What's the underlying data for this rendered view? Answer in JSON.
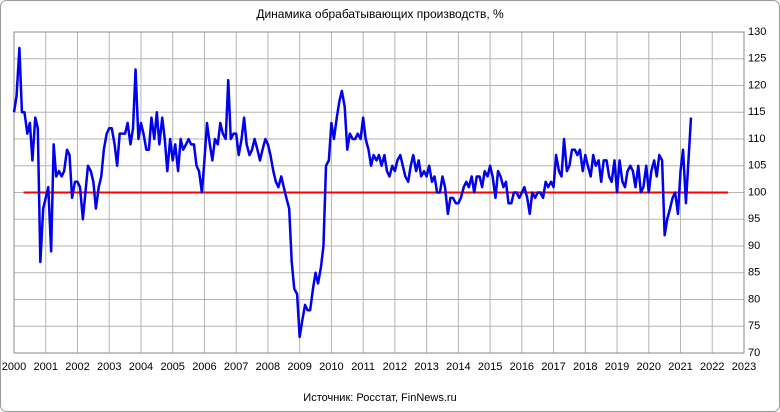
{
  "chart_data": {
    "type": "line",
    "title": "Динамика обрабатывающих производств, %",
    "source": "Источник: Росстат, FinNews.ru",
    "xlim": [
      2000,
      2023
    ],
    "xticks": [
      2000,
      2001,
      2002,
      2003,
      2004,
      2005,
      2006,
      2007,
      2008,
      2009,
      2010,
      2011,
      2012,
      2013,
      2014,
      2015,
      2016,
      2017,
      2018,
      2019,
      2020,
      2021,
      2022,
      2023
    ],
    "ylim": [
      70,
      130
    ],
    "yticks": [
      70,
      75,
      80,
      85,
      90,
      95,
      100,
      105,
      110,
      115,
      120,
      125,
      130
    ],
    "grid": true,
    "reference_line": {
      "value": 100,
      "xlim": [
        2000.3,
        2022.5
      ],
      "color": "#ff0000"
    },
    "x": [
      2000,
      2000.08,
      2000.17,
      2000.25,
      2000.33,
      2000.42,
      2000.5,
      2000.58,
      2000.67,
      2000.75,
      2000.83,
      2000.92,
      2001,
      2001.08,
      2001.17,
      2001.25,
      2001.33,
      2001.42,
      2001.5,
      2001.58,
      2001.67,
      2001.75,
      2001.83,
      2001.92,
      2002,
      2002.08,
      2002.17,
      2002.25,
      2002.33,
      2002.42,
      2002.5,
      2002.58,
      2002.67,
      2002.75,
      2002.83,
      2002.92,
      2003,
      2003.08,
      2003.17,
      2003.25,
      2003.33,
      2003.42,
      2003.5,
      2003.58,
      2003.67,
      2003.75,
      2003.83,
      2003.92,
      2004,
      2004.08,
      2004.17,
      2004.25,
      2004.33,
      2004.42,
      2004.5,
      2004.58,
      2004.67,
      2004.75,
      2004.83,
      2004.92,
      2005,
      2005.08,
      2005.17,
      2005.25,
      2005.33,
      2005.42,
      2005.5,
      2005.58,
      2005.67,
      2005.75,
      2005.83,
      2005.92,
      2006,
      2006.08,
      2006.17,
      2006.25,
      2006.33,
      2006.42,
      2006.5,
      2006.58,
      2006.67,
      2006.75,
      2006.83,
      2006.92,
      2007,
      2007.08,
      2007.17,
      2007.25,
      2007.33,
      2007.42,
      2007.5,
      2007.58,
      2007.67,
      2007.75,
      2007.83,
      2007.92,
      2008,
      2008.08,
      2008.17,
      2008.25,
      2008.33,
      2008.42,
      2008.5,
      2008.58,
      2008.67,
      2008.75,
      2008.83,
      2008.92,
      2009,
      2009.08,
      2009.17,
      2009.25,
      2009.33,
      2009.42,
      2009.5,
      2009.58,
      2009.67,
      2009.75,
      2009.83,
      2009.92,
      2010,
      2010.08,
      2010.17,
      2010.25,
      2010.33,
      2010.42,
      2010.5,
      2010.58,
      2010.67,
      2010.75,
      2010.83,
      2010.92,
      2011,
      2011.08,
      2011.17,
      2011.25,
      2011.33,
      2011.42,
      2011.5,
      2011.58,
      2011.67,
      2011.75,
      2011.83,
      2011.92,
      2012,
      2012.08,
      2012.17,
      2012.25,
      2012.33,
      2012.42,
      2012.5,
      2012.58,
      2012.67,
      2012.75,
      2012.83,
      2012.92,
      2013,
      2013.08,
      2013.17,
      2013.25,
      2013.33,
      2013.42,
      2013.5,
      2013.58,
      2013.67,
      2013.75,
      2013.83,
      2013.92,
      2014,
      2014.08,
      2014.17,
      2014.25,
      2014.33,
      2014.42,
      2014.5,
      2014.58,
      2014.67,
      2014.75,
      2014.83,
      2014.92,
      2015,
      2015.08,
      2015.17,
      2015.25,
      2015.33,
      2015.42,
      2015.5,
      2015.58,
      2015.67,
      2015.75,
      2015.83,
      2015.92,
      2016,
      2016.08,
      2016.17,
      2016.25,
      2016.33,
      2016.42,
      2016.5,
      2016.58,
      2016.67,
      2016.75,
      2016.83,
      2016.92,
      2017,
      2017.08,
      2017.17,
      2017.25,
      2017.33,
      2017.42,
      2017.5,
      2017.58,
      2017.67,
      2017.75,
      2017.83,
      2017.92,
      2018,
      2018.08,
      2018.17,
      2018.25,
      2018.33,
      2018.42,
      2018.5,
      2018.58,
      2018.67,
      2018.75,
      2018.83,
      2018.92,
      2019,
      2019.08,
      2019.17,
      2019.25,
      2019.33,
      2019.42,
      2019.5,
      2019.58,
      2019.67,
      2019.75,
      2019.83,
      2019.92,
      2020,
      2020.08,
      2020.17,
      2020.25,
      2020.33,
      2020.42,
      2020.5,
      2020.58,
      2020.67,
      2020.75,
      2020.83,
      2020.92,
      2021,
      2021.08,
      2021.17,
      2021.25,
      2021.33
    ],
    "color": "#0000ee",
    "values": [
      115,
      118,
      127,
      115,
      115,
      111,
      113,
      106,
      114,
      112,
      87,
      97,
      99,
      101,
      89,
      109,
      103,
      104,
      103,
      104,
      108,
      107,
      99,
      102,
      102,
      101,
      95,
      100,
      105,
      104,
      102,
      97,
      101,
      103,
      108,
      111,
      112,
      112,
      109,
      105,
      111,
      111,
      111,
      113,
      109,
      112,
      123,
      110,
      113,
      111,
      108,
      108,
      114,
      110,
      115,
      109,
      114,
      110,
      104,
      110,
      106,
      109,
      104,
      110,
      108,
      109,
      110,
      109,
      109,
      105,
      104,
      100,
      106,
      113,
      109,
      106,
      110,
      109,
      113,
      111,
      110,
      121,
      110,
      111,
      111,
      107,
      110,
      114,
      109,
      107,
      108,
      110,
      108,
      106,
      108,
      110,
      109,
      107,
      104,
      102,
      101,
      103,
      101,
      99,
      97,
      87,
      82,
      81,
      73,
      76,
      79,
      78,
      78,
      82,
      85,
      83,
      86,
      90,
      105,
      106,
      113,
      110,
      114,
      117,
      119,
      116,
      108,
      111,
      110,
      110,
      111,
      110,
      114,
      110,
      108,
      105,
      107,
      106,
      107,
      105,
      107,
      104,
      103,
      105,
      104,
      106,
      107,
      105,
      103,
      102,
      105,
      107,
      104,
      106,
      103,
      104,
      103,
      105,
      102,
      103,
      100,
      100,
      103,
      101,
      96,
      99,
      99,
      98,
      98,
      99,
      101,
      102,
      101,
      103,
      100,
      103,
      103,
      101,
      104,
      103,
      105,
      103,
      99,
      104,
      103,
      101,
      102,
      98,
      98,
      100,
      100,
      99,
      100,
      101,
      99,
      96,
      100,
      99,
      100,
      100,
      99,
      102,
      101,
      102,
      101,
      107,
      104,
      103,
      110,
      104,
      105,
      108,
      108,
      107,
      108,
      104,
      107,
      105,
      103,
      107,
      105,
      106,
      102,
      106,
      106,
      103,
      102,
      106,
      100,
      106,
      102,
      101,
      104,
      105,
      104,
      101,
      105,
      100,
      101,
      105,
      100,
      104,
      106,
      103,
      107,
      106,
      92,
      95,
      97,
      99,
      100,
      96,
      104,
      108,
      98,
      106,
      114
    ]
  }
}
